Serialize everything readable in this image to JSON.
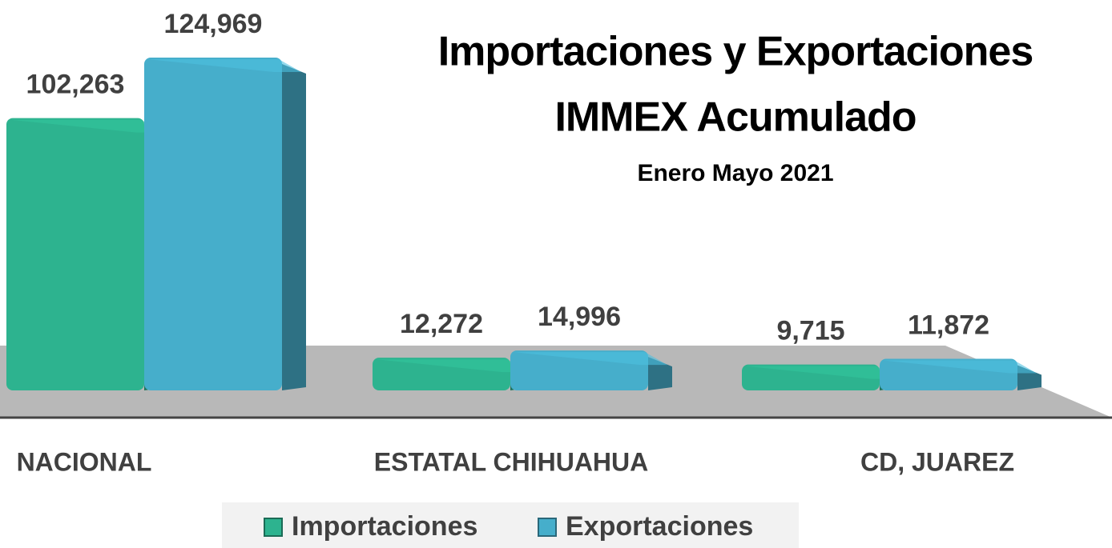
{
  "chart_data": {
    "type": "bar3d",
    "title": "Importaciones y Exportaciones",
    "subtitle": "IMMEX Acumulado",
    "annotation": "Enero Mayo 2021",
    "categories": [
      "NACIONAL",
      "ESTATAL CHIHUAHUA",
      "CD, JUAREZ"
    ],
    "series": [
      {
        "name": "Importaciones",
        "color": "#2db38f",
        "values": [
          102263,
          12272,
          9715
        ],
        "value_labels": [
          "102,263",
          "12,272",
          "9,715"
        ]
      },
      {
        "name": "Exportaciones",
        "color": "#46aecb",
        "values": [
          124969,
          14996,
          11872
        ],
        "value_labels": [
          "124,969",
          "14,996",
          "11,872"
        ]
      }
    ],
    "legend": "bottom"
  }
}
